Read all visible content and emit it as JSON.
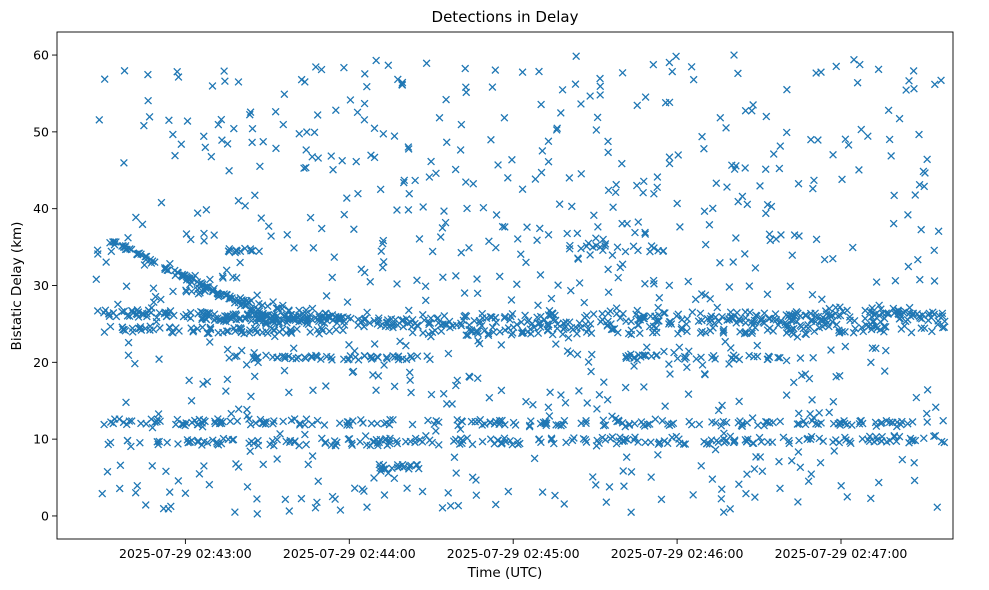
{
  "chart_data": {
    "type": "scatter",
    "title": "Detections in Delay",
    "xlabel": "Time (UTC)",
    "ylabel": "Bistatic Delay (km)",
    "marker": "x",
    "marker_color": "#1f77b4",
    "x_range_seconds_from_first_tick": [
      -38,
      19
    ],
    "x_ticks": [
      {
        "t": 0,
        "label": "2025-07-29 02:43:00"
      },
      {
        "t": 60,
        "label": "2025-07-29 02:44:00"
      },
      {
        "t": 120,
        "label": "2025-07-29 02:45:00"
      },
      {
        "t": 180,
        "label": "2025-07-29 02:46:00"
      },
      {
        "t": 240,
        "label": "2025-07-29 02:47:00"
      }
    ],
    "xlim_seconds": [
      -47,
      281
    ],
    "ylim": [
      -3,
      63
    ],
    "y_ticks": [
      0,
      10,
      20,
      30,
      40,
      50,
      60
    ],
    "grid": false,
    "legend": "none",
    "tracks": [
      {
        "t0": -30,
        "t1": 33,
        "y0": 36.2,
        "y1": 25.5,
        "jitter": 0.3,
        "n": 110
      },
      {
        "t0": -30,
        "t1": 58,
        "y0": 26.5,
        "y1": 25.5,
        "jitter": 0.5,
        "n": 120
      },
      {
        "t0": -30,
        "t1": 58,
        "y0": 24.3,
        "y1": 24.0,
        "jitter": 0.4,
        "n": 90
      },
      {
        "t0": 0,
        "t1": 60,
        "y0": 29.5,
        "y1": 25.5,
        "jitter": 0.3,
        "n": 60
      },
      {
        "t0": 0,
        "t1": 85,
        "y0": 26.0,
        "y1": 25.0,
        "jitter": 0.6,
        "n": 110
      },
      {
        "t0": 85,
        "t1": 278,
        "y0": 25.5,
        "y1": 26.0,
        "jitter": 0.8,
        "n": 260
      },
      {
        "t0": 85,
        "t1": 278,
        "y0": 24.0,
        "y1": 24.5,
        "jitter": 0.6,
        "n": 160
      },
      {
        "t0": -30,
        "t1": 278,
        "y0": 9.5,
        "y1": 10.0,
        "jitter": 0.5,
        "n": 260
      },
      {
        "t0": -30,
        "t1": 278,
        "y0": 12.3,
        "y1": 12.0,
        "jitter": 0.4,
        "n": 220
      },
      {
        "t0": 40,
        "t1": 90,
        "y0": 20.6,
        "y1": 20.6,
        "jitter": 0.3,
        "n": 50
      },
      {
        "t0": 160,
        "t1": 230,
        "y0": 20.8,
        "y1": 20.5,
        "jitter": 0.3,
        "n": 50
      },
      {
        "t0": 15,
        "t1": 40,
        "y0": 20.7,
        "y1": 20.7,
        "jitter": 0.3,
        "n": 20
      },
      {
        "t0": 140,
        "t1": 175,
        "y0": 34.8,
        "y1": 34.8,
        "jitter": 0.4,
        "n": 30
      },
      {
        "t0": 15,
        "t1": 30,
        "y0": 34.6,
        "y1": 34.6,
        "jitter": 0.3,
        "n": 15
      },
      {
        "t0": 70,
        "t1": 88,
        "y0": 6.4,
        "y1": 6.4,
        "jitter": 0.3,
        "n": 18
      },
      {
        "t0": 0,
        "t1": 20,
        "y0": 31.0,
        "y1": 31.0,
        "jitter": 0.3,
        "n": 12
      },
      {
        "t0": 235,
        "t1": 278,
        "y0": 27.0,
        "y1": 26.3,
        "jitter": 0.4,
        "n": 30
      }
    ],
    "scatter_noise": {
      "n": 760,
      "y_min": 0,
      "y_max": 60,
      "t_min": -33,
      "t_max": 278
    }
  }
}
